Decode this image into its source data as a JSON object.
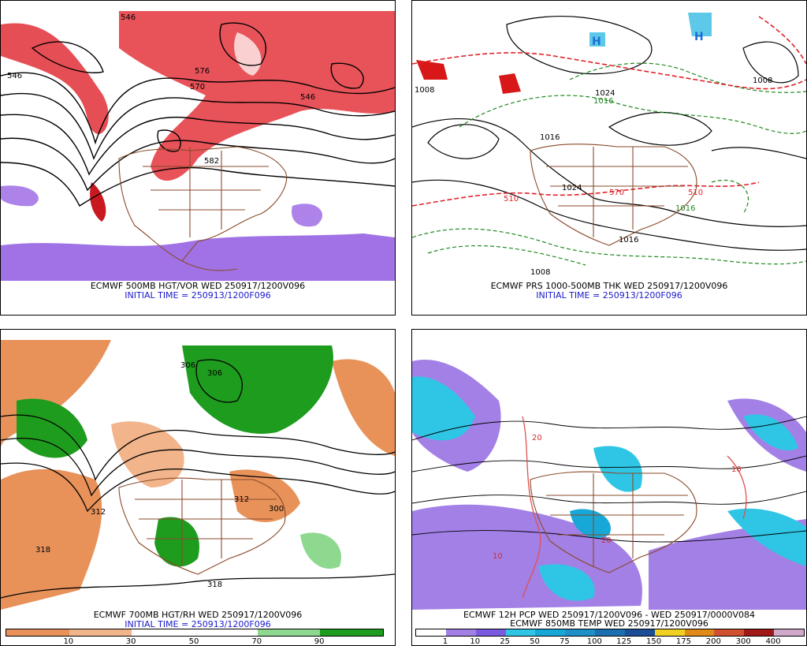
{
  "panels": [
    {
      "caption_line1": "ECMWF 500MB HGT/VOR WED 250917/1200V096",
      "caption_line2": "INITIAL TIME = 250913/1200F096",
      "contour_labels": [
        "546",
        "570",
        "576",
        "582",
        "546",
        "546"
      ],
      "colors": {
        "vorticity": "#e0222a",
        "negative": "#8a4fe0"
      }
    },
    {
      "caption_line1": "ECMWF PRS 1000-500MB THK WED 250917/1200V096",
      "caption_line2": "INITIAL TIME = 250913/1200F096",
      "contour_labels": [
        "1008",
        "1016",
        "1024",
        "1016",
        "1008",
        "1008",
        "1016",
        "1016",
        "1024",
        "510",
        "570",
        "510"
      ],
      "highs_lows": [
        "H",
        "H"
      ],
      "colors": {
        "thickness_cold": "#e0222a",
        "thickness_warm": "#1f8a1f"
      }
    },
    {
      "caption_line1": "ECMWF 700MB HGT/RH WED 250917/1200V096",
      "caption_line2": "INITIAL TIME = 250913/1200F096",
      "colorbar": {
        "colors": [
          "#e8925a",
          "#f2b48a",
          "#ffffff",
          "#ffffff",
          "#8fd88f",
          "#1e9c1e"
        ],
        "ticks": [
          "10",
          "30",
          "50",
          "70",
          "90"
        ]
      },
      "contour_labels": [
        "306",
        "312",
        "306",
        "300",
        "318",
        "318",
        "312"
      ]
    },
    {
      "caption_line1": "ECMWF 12H PCP WED 250917/1200V096 - WED 250917/0000V084",
      "caption_line2": "ECMWF 850MB TEMP WED 250917/1200V096",
      "colorbar": {
        "colors": [
          "#ffffff",
          "#a380e6",
          "#7a5ae0",
          "#2fc6e6",
          "#18a8d8",
          "#1e90c8",
          "#1a6fb0",
          "#1a4f98",
          "#f0d020",
          "#e08a18",
          "#d05030",
          "#a01818",
          "#d0a8c8"
        ],
        "ticks": [
          "1",
          "10",
          "25",
          "50",
          "75",
          "100",
          "125",
          "150",
          "175",
          "200",
          "300",
          "400"
        ]
      },
      "contour_labels": [
        "20",
        "10",
        "20",
        "10"
      ]
    }
  ]
}
